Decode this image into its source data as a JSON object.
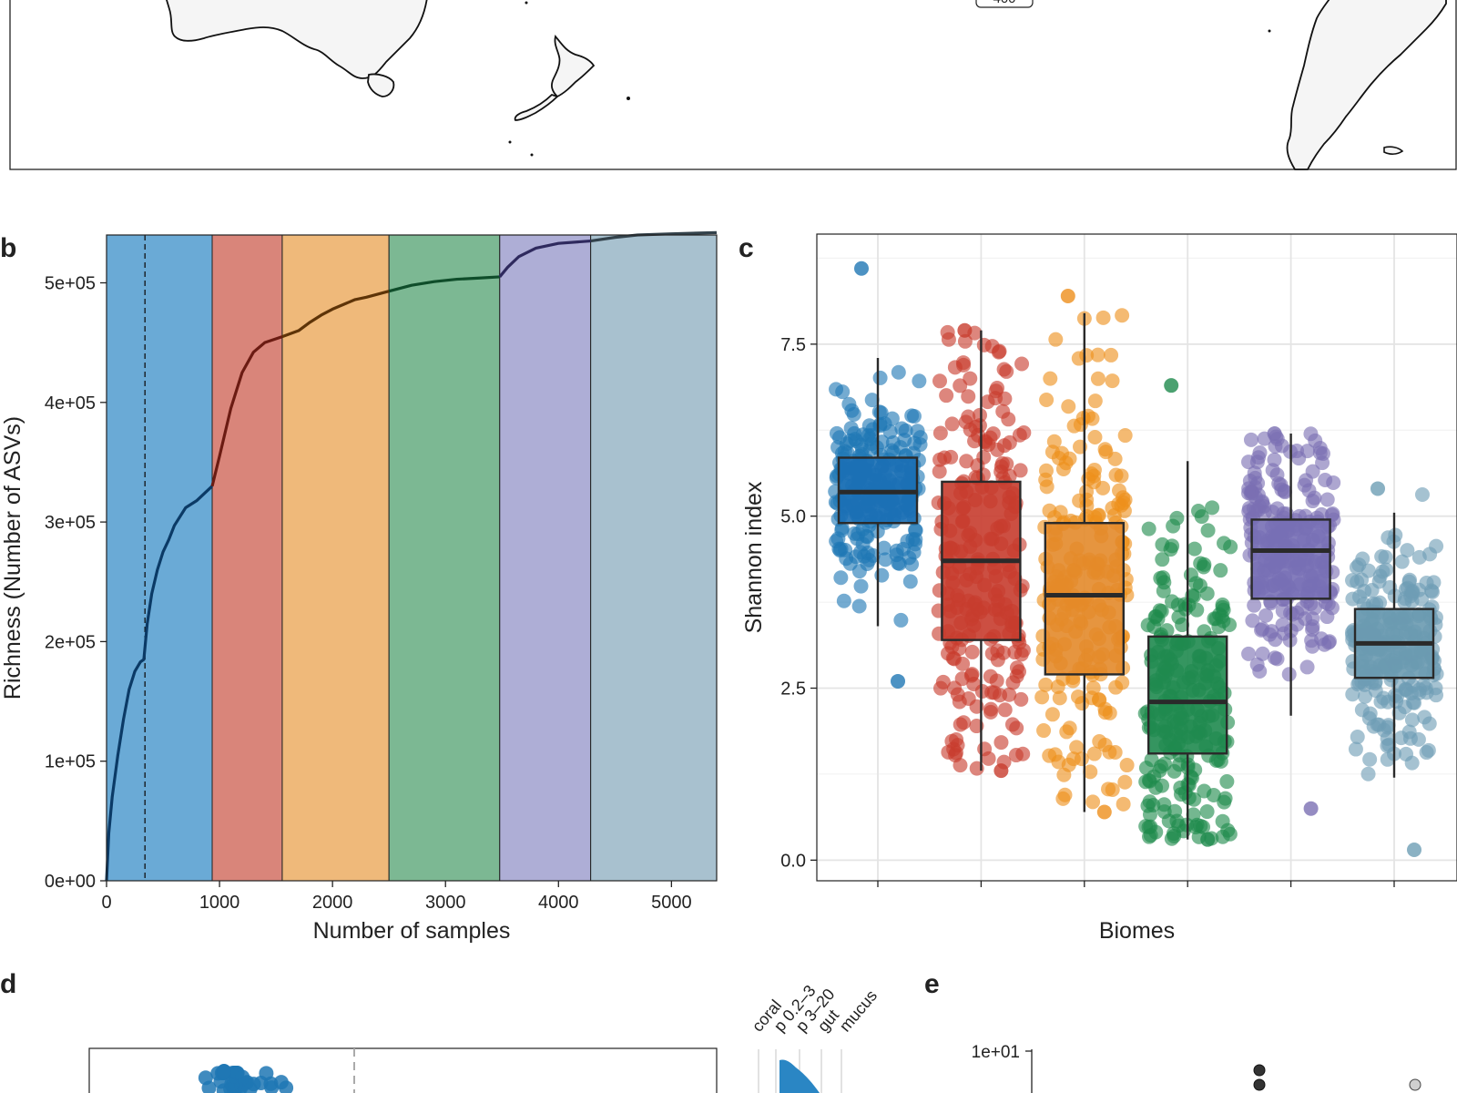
{
  "panels": {
    "b": "b",
    "c": "c",
    "d": "d",
    "e": "e"
  },
  "map_top": {
    "badge_text": "400",
    "land_color": "#f5f5f5"
  },
  "chart_data": [
    {
      "panel": "b",
      "type": "line",
      "xlabel": "Number of samples",
      "ylabel": "Richness (Number of ASVs)",
      "xlim": [
        0,
        5400
      ],
      "ylim": [
        0,
        540000
      ],
      "x_ticks": [
        0,
        1000,
        2000,
        3000,
        4000,
        5000
      ],
      "x_tick_labels": [
        "0",
        "1000",
        "2000",
        "3000",
        "4000",
        "5000"
      ],
      "y_ticks": [
        0,
        100000,
        200000,
        300000,
        400000,
        500000
      ],
      "y_tick_labels": [
        "0e+00",
        "1e+05",
        "2e+05",
        "3e+05",
        "4e+05",
        "5e+05"
      ],
      "dashed_vline_x": 340,
      "bands": [
        {
          "start": 0,
          "end": 935,
          "color": "#6aaad6",
          "line": "#0b3a66"
        },
        {
          "start": 935,
          "end": 1555,
          "color": "#d9857a",
          "line": "#6b1b12"
        },
        {
          "start": 1555,
          "end": 2500,
          "color": "#efb97a",
          "line": "#5e3408"
        },
        {
          "start": 2500,
          "end": 3480,
          "color": "#7cb893",
          "line": "#0f4d2a"
        },
        {
          "start": 3480,
          "end": 4285,
          "color": "#aeaed6",
          "line": "#2f2a5e"
        },
        {
          "start": 4285,
          "end": 5400,
          "color": "#a8c1cf",
          "line": "#33424b"
        }
      ],
      "x": [
        0,
        20,
        50,
        100,
        150,
        200,
        250,
        300,
        330,
        345,
        360,
        400,
        450,
        500,
        550,
        600,
        700,
        800,
        935,
        1000,
        1100,
        1200,
        1300,
        1400,
        1555,
        1700,
        1800,
        1900,
        2000,
        2100,
        2200,
        2300,
        2500,
        2700,
        2900,
        3100,
        3300,
        3480,
        3550,
        3650,
        3800,
        4000,
        4285,
        4500,
        4700,
        5000,
        5400
      ],
      "y": [
        0,
        40000,
        70000,
        105000,
        135000,
        160000,
        175000,
        183000,
        185000,
        200000,
        215000,
        240000,
        260000,
        275000,
        285000,
        297000,
        312000,
        318000,
        330000,
        355000,
        395000,
        425000,
        442000,
        450000,
        455000,
        460000,
        467000,
        473000,
        478000,
        482000,
        486000,
        488000,
        493000,
        498000,
        501000,
        503000,
        504000,
        505000,
        513000,
        522000,
        529000,
        533000,
        535000,
        538000,
        540000,
        541000,
        542000
      ]
    },
    {
      "panel": "c",
      "type": "scatter",
      "xlabel": "Biomes",
      "ylabel": "Shannon index",
      "ylim": [
        -0.3,
        9.1
      ],
      "y_ticks": [
        0,
        2.5,
        5,
        7.5
      ],
      "y_tick_labels": [
        "0.0",
        "2.5",
        "5.0",
        "7.5"
      ],
      "groups": [
        {
          "color": "#1f77b4",
          "box_color": "#1b6fb5",
          "q1": 4.9,
          "median": 5.35,
          "q3": 5.85,
          "whisker_low": 3.4,
          "whisker_high": 7.3,
          "min": 2.6,
          "max": 8.6
        },
        {
          "color": "#c83c2d",
          "box_color": "#c63c2e",
          "q1": 3.2,
          "median": 4.35,
          "q3": 5.5,
          "whisker_low": 1.3,
          "whisker_high": 7.7,
          "min": 1.3,
          "max": 7.7
        },
        {
          "color": "#ee8f1c",
          "box_color": "#e3892a",
          "q1": 2.7,
          "median": 3.85,
          "q3": 4.9,
          "whisker_low": 0.7,
          "whisker_high": 7.95,
          "min": 0.7,
          "max": 8.2
        },
        {
          "color": "#1e8a4c",
          "box_color": "#1f8a4f",
          "q1": 1.55,
          "median": 2.3,
          "q3": 3.25,
          "whisker_low": 0.3,
          "whisker_high": 5.8,
          "min": 0.3,
          "max": 6.9
        },
        {
          "color": "#7a6fb3",
          "box_color": "#776fb5",
          "q1": 3.8,
          "median": 4.5,
          "q3": 4.95,
          "whisker_low": 2.1,
          "whisker_high": 6.2,
          "min": 0.75,
          "max": 6.2
        },
        {
          "color": "#6d9db4",
          "box_color": "#6a9ab0",
          "q1": 2.65,
          "median": 3.15,
          "q3": 3.65,
          "whisker_low": 1.2,
          "whisker_high": 5.05,
          "min": 0.15,
          "max": 5.4
        }
      ]
    },
    {
      "panel": "d",
      "type": "scatter",
      "column_labels": [
        "coral",
        "p 0.2–3",
        "p 3–20",
        "gut",
        "mucus"
      ],
      "point_color": "#1f77b4"
    },
    {
      "panel": "e",
      "type": "scatter",
      "y_tick_labels": [
        "1e+01"
      ]
    }
  ]
}
